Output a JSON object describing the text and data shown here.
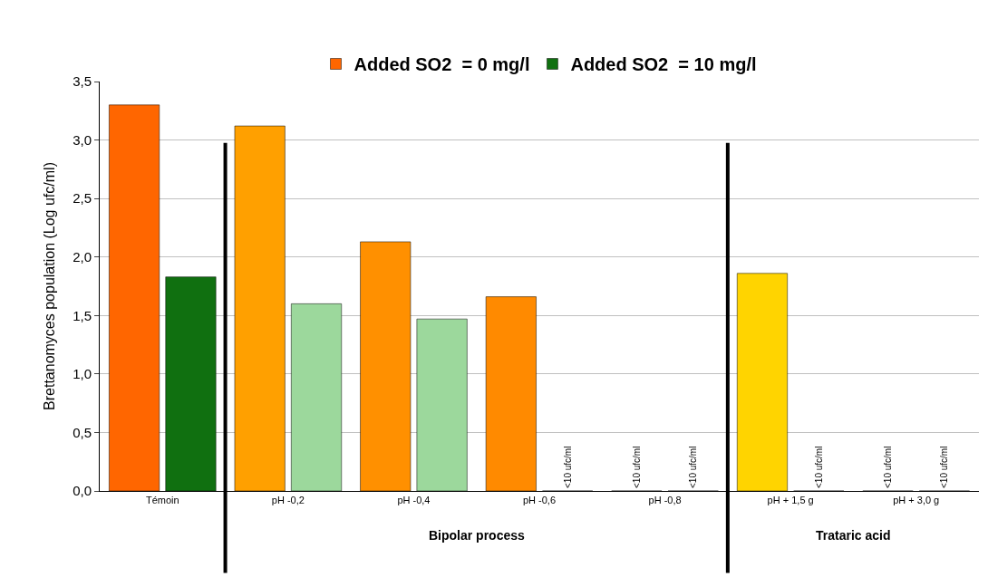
{
  "chart_data": {
    "type": "bar",
    "ylabel": "Brettanomyces population (Log ufc/ml)",
    "categories": [
      "Témoin",
      "pH -0,2",
      "pH -0,4",
      "pH -0,6",
      "pH -0,8",
      "pH + 1,5 g",
      "pH + 3,0 g"
    ],
    "series": [
      {
        "name": "Added SO2  = 0 mg/l",
        "colors": [
          "#ff6600",
          "#ffa000",
          "#ff9000",
          "#ff8a00",
          "#000000",
          "#ffd400",
          "#000000"
        ],
        "values": [
          3.3,
          3.12,
          2.13,
          1.66,
          0,
          1.86,
          0
        ],
        "value_labels": [
          null,
          null,
          null,
          null,
          "<10 ufc/ml",
          null,
          "<10 ufc/ml"
        ]
      },
      {
        "name": "Added SO2  = 10 mg/l",
        "colors": [
          "#107010",
          "#9cd89c",
          "#9cd89c",
          "#000000",
          "#000000",
          "#000000",
          "#000000"
        ],
        "values": [
          1.83,
          1.6,
          1.47,
          0,
          0,
          0,
          0
        ],
        "value_labels": [
          null,
          null,
          null,
          "<10 ufc/ml",
          "<10 ufc/ml",
          "<10 ufc/ml",
          "<10 ufc/ml"
        ]
      }
    ],
    "ylim": [
      0,
      3.5
    ],
    "yticks": [
      {
        "value": 0,
        "label": "0,0"
      },
      {
        "value": 0.5,
        "label": "0,5"
      },
      {
        "value": 1,
        "label": "1,0"
      },
      {
        "value": 1.5,
        "label": "1,5"
      },
      {
        "value": 2,
        "label": "2,0"
      },
      {
        "value": 2.5,
        "label": "2,5"
      },
      {
        "value": 3,
        "label": "3,0"
      },
      {
        "value": 3.5,
        "label": "3,5"
      }
    ],
    "grid": "y",
    "legend": "top",
    "annotations": [
      "Bipolar process",
      "Trataric acid"
    ]
  }
}
